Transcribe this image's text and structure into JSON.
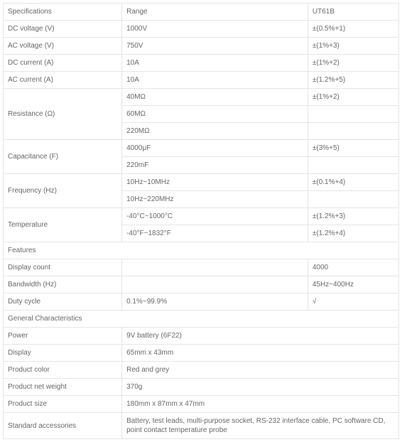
{
  "header": {
    "spec": "Specifications",
    "range": "Range",
    "model": "UT61B"
  },
  "specs": [
    {
      "name": "DC voltage (V)",
      "ranges": [
        {
          "v": "1000V",
          "acc": "±(0.5%+1)"
        }
      ]
    },
    {
      "name": "AC voltage (V)",
      "ranges": [
        {
          "v": "750V",
          "acc": "±(1%+3)"
        }
      ]
    },
    {
      "name": "DC current (A)",
      "ranges": [
        {
          "v": "10A",
          "acc": "±(1%+2)"
        }
      ]
    },
    {
      "name": "AC current (A)",
      "ranges": [
        {
          "v": "10A",
          "acc": "±(1.2%+5)"
        }
      ]
    },
    {
      "name": "Resistance (Ω)",
      "ranges": [
        {
          "v": "40MΩ",
          "acc": "±(1%+2)"
        },
        {
          "v": "60MΩ",
          "acc": ""
        },
        {
          "v": "220MΩ",
          "acc": ""
        }
      ]
    },
    {
      "name": "Capacitance (F)",
      "ranges": [
        {
          "v": "4000μF",
          "acc": "±(3%+5)"
        },
        {
          "v": "220mF",
          "acc": ""
        }
      ]
    },
    {
      "name": "Frequency (Hz)",
      "ranges": [
        {
          "v": "10Hz~10MHz",
          "acc": "±(0.1%+4)"
        },
        {
          "v": "10Hz~220MHz",
          "acc": ""
        }
      ]
    },
    {
      "name": "Temperature",
      "ranges": [
        {
          "v": "-40°C~1000°C",
          "acc": "±(1.2%+3)"
        },
        {
          "v": "-40°F~1832°F",
          "acc": "±(1.2%+4)"
        }
      ]
    }
  ],
  "features_header": "Features",
  "features": [
    {
      "name": "Display count",
      "v": "",
      "m": "4000"
    },
    {
      "name": "Bandwidth (Hz)",
      "v": "",
      "m": "45Hz~400Hz"
    },
    {
      "name": "Duty cycle",
      "v": "0.1%~99.9%",
      "m": "√"
    }
  ],
  "general_header": "General Characteristics",
  "general": [
    {
      "name": "Power",
      "v": "9V battery (6F22)"
    },
    {
      "name": "Display",
      "v": "65mm x 43mm"
    },
    {
      "name": "Product color",
      "v": "Red and grey"
    },
    {
      "name": "Product net weight",
      "v": "370g"
    },
    {
      "name": "Product size",
      "v": "180mm x 87mm x 47mm"
    },
    {
      "name": "Standard accessories",
      "v": "Battery, test leads, multi-purpose socket, RS-232 interface cable, PC software CD, point contact temperature probe"
    }
  ]
}
